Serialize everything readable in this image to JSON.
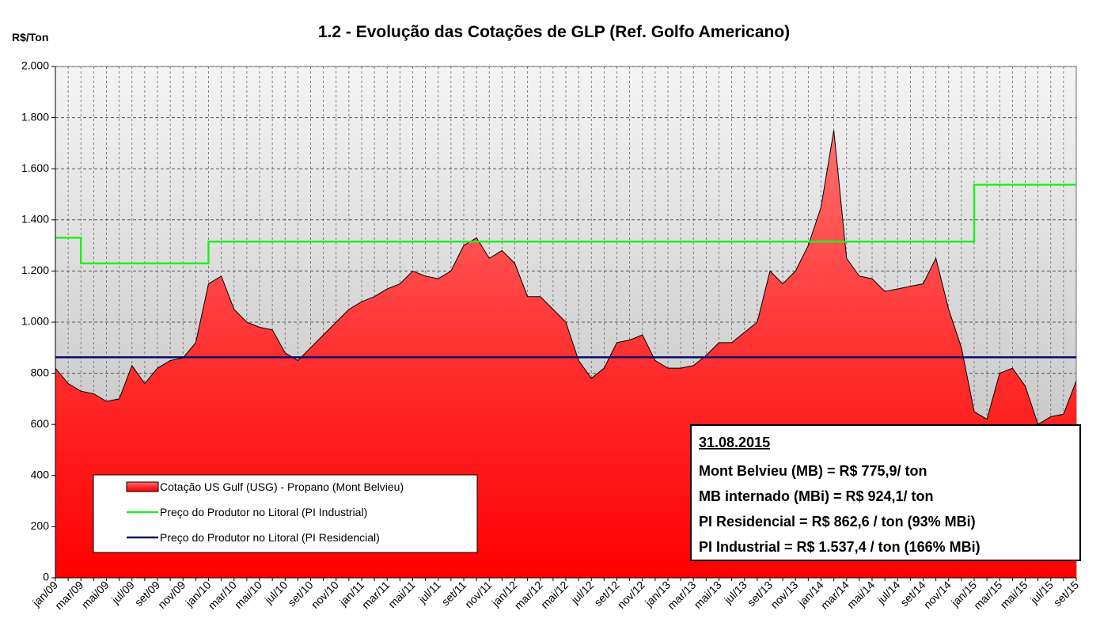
{
  "chart_data": {
    "type": "area-line",
    "title": "1.2 - Evolução das Cotações de GLP (Ref. Golfo Americano)",
    "y_label": "R$/Ton",
    "categories": [
      "jan/09",
      null,
      "mar/09",
      null,
      "mai/09",
      null,
      "jul/09",
      null,
      "set/09",
      null,
      "nov/09",
      null,
      "jan/10",
      null,
      "mar/10",
      null,
      "mai/10",
      null,
      "jul/10",
      null,
      "set/10",
      null,
      "nov/10",
      null,
      "jan/11",
      null,
      "mar/11",
      null,
      "mai/11",
      null,
      "jul/11",
      null,
      "set/11",
      null,
      "nov/11",
      null,
      "jan/12",
      null,
      "mar/12",
      null,
      "mai/12",
      null,
      "jul/12",
      null,
      "set/12",
      null,
      "nov/12",
      null,
      "jan/13",
      null,
      "mar/13",
      null,
      "mai/13",
      null,
      "jul/13",
      null,
      "set/13",
      null,
      "nov/13",
      null,
      "jan/14",
      null,
      "mar/14",
      null,
      "mai/14",
      null,
      "jul/14",
      null,
      "set/14",
      null,
      "nov/14",
      null,
      "jan/15",
      null,
      "mar/15",
      null,
      "mai/15",
      null,
      "jul/15",
      null,
      "set/15"
    ],
    "series": [
      {
        "name": "Cotação US Gulf (USG) - Propano (Mont Belvieu)",
        "kind": "area",
        "color": "#ff2020",
        "values": [
          820,
          760,
          730,
          720,
          690,
          700,
          830,
          760,
          820,
          850,
          860,
          920,
          1150,
          1180,
          1050,
          1000,
          980,
          970,
          880,
          850,
          900,
          950,
          1000,
          1050,
          1080,
          1100,
          1130,
          1150,
          1200,
          1180,
          1170,
          1200,
          1300,
          1330,
          1250,
          1280,
          1230,
          1100,
          1100,
          1050,
          1000,
          850,
          780,
          820,
          920,
          930,
          950,
          850,
          820,
          820,
          830,
          870,
          920,
          920,
          960,
          1000,
          1200,
          1150,
          1200,
          1300,
          1450,
          1750,
          1250,
          1180,
          1170,
          1120,
          1130,
          1140,
          1150,
          1250,
          1050,
          900,
          650,
          620,
          800,
          820,
          750,
          600,
          630,
          640,
          770
        ]
      },
      {
        "name": "Preço do Produtor no Litoral (PI Industrial)",
        "kind": "step",
        "color": "#22ee22",
        "values": [
          1330,
          1330,
          1230,
          1230,
          1230,
          1230,
          1230,
          1230,
          1230,
          1230,
          1230,
          1230,
          1315,
          1315,
          1315,
          1315,
          1315,
          1315,
          1315,
          1315,
          1315,
          1315,
          1315,
          1315,
          1315,
          1315,
          1315,
          1315,
          1315,
          1315,
          1315,
          1315,
          1315,
          1315,
          1315,
          1315,
          1315,
          1315,
          1315,
          1315,
          1315,
          1315,
          1315,
          1315,
          1315,
          1315,
          1315,
          1315,
          1315,
          1315,
          1315,
          1315,
          1315,
          1315,
          1315,
          1315,
          1315,
          1315,
          1315,
          1315,
          1315,
          1315,
          1315,
          1315,
          1315,
          1315,
          1315,
          1315,
          1315,
          1315,
          1315,
          1315,
          1537.4,
          1537.4,
          1537.4,
          1537.4,
          1537.4,
          1537.4,
          1537.4,
          1537.4,
          1537.4
        ]
      },
      {
        "name": "Preço do Produtor no Litoral (PI Residencial)",
        "kind": "step",
        "color": "#0a0a6e",
        "values": [
          862.6,
          862.6,
          862.6,
          862.6,
          862.6,
          862.6,
          862.6,
          862.6,
          862.6,
          862.6,
          862.6,
          862.6,
          862.6,
          862.6,
          862.6,
          862.6,
          862.6,
          862.6,
          862.6,
          862.6,
          862.6,
          862.6,
          862.6,
          862.6,
          862.6,
          862.6,
          862.6,
          862.6,
          862.6,
          862.6,
          862.6,
          862.6,
          862.6,
          862.6,
          862.6,
          862.6,
          862.6,
          862.6,
          862.6,
          862.6,
          862.6,
          862.6,
          862.6,
          862.6,
          862.6,
          862.6,
          862.6,
          862.6,
          862.6,
          862.6,
          862.6,
          862.6,
          862.6,
          862.6,
          862.6,
          862.6,
          862.6,
          862.6,
          862.6,
          862.6,
          862.6,
          862.6,
          862.6,
          862.6,
          862.6,
          862.6,
          862.6,
          862.6,
          862.6,
          862.6,
          862.6,
          862.6,
          862.6,
          862.6,
          862.6,
          862.6,
          862.6,
          862.6,
          862.6,
          862.6,
          862.6
        ]
      }
    ],
    "ylim": [
      0,
      2000
    ],
    "yticks": [
      0,
      200,
      400,
      600,
      800,
      {
        "value": 1000,
        "label": "1.000"
      },
      {
        "value": 1200,
        "label": "1.200"
      },
      {
        "value": 1400,
        "label": "1.400"
      },
      {
        "value": 1600,
        "label": "1.600"
      },
      {
        "value": 1800,
        "label": "1.800"
      },
      {
        "value": 2000,
        "label": "2.000"
      }
    ],
    "grid": true,
    "legend": "lower-left",
    "annotation": {
      "date": "31.08.2015",
      "lines": [
        "Mont Belvieu (MB) = R$ 775,9/ ton",
        "MB internado (MBi) = R$ 924,1/ ton",
        "PI Residencial = R$ 862,6 / ton (93% MBi)",
        "PI Industrial = R$ 1.537,4 / ton (166% MBi)"
      ]
    }
  }
}
